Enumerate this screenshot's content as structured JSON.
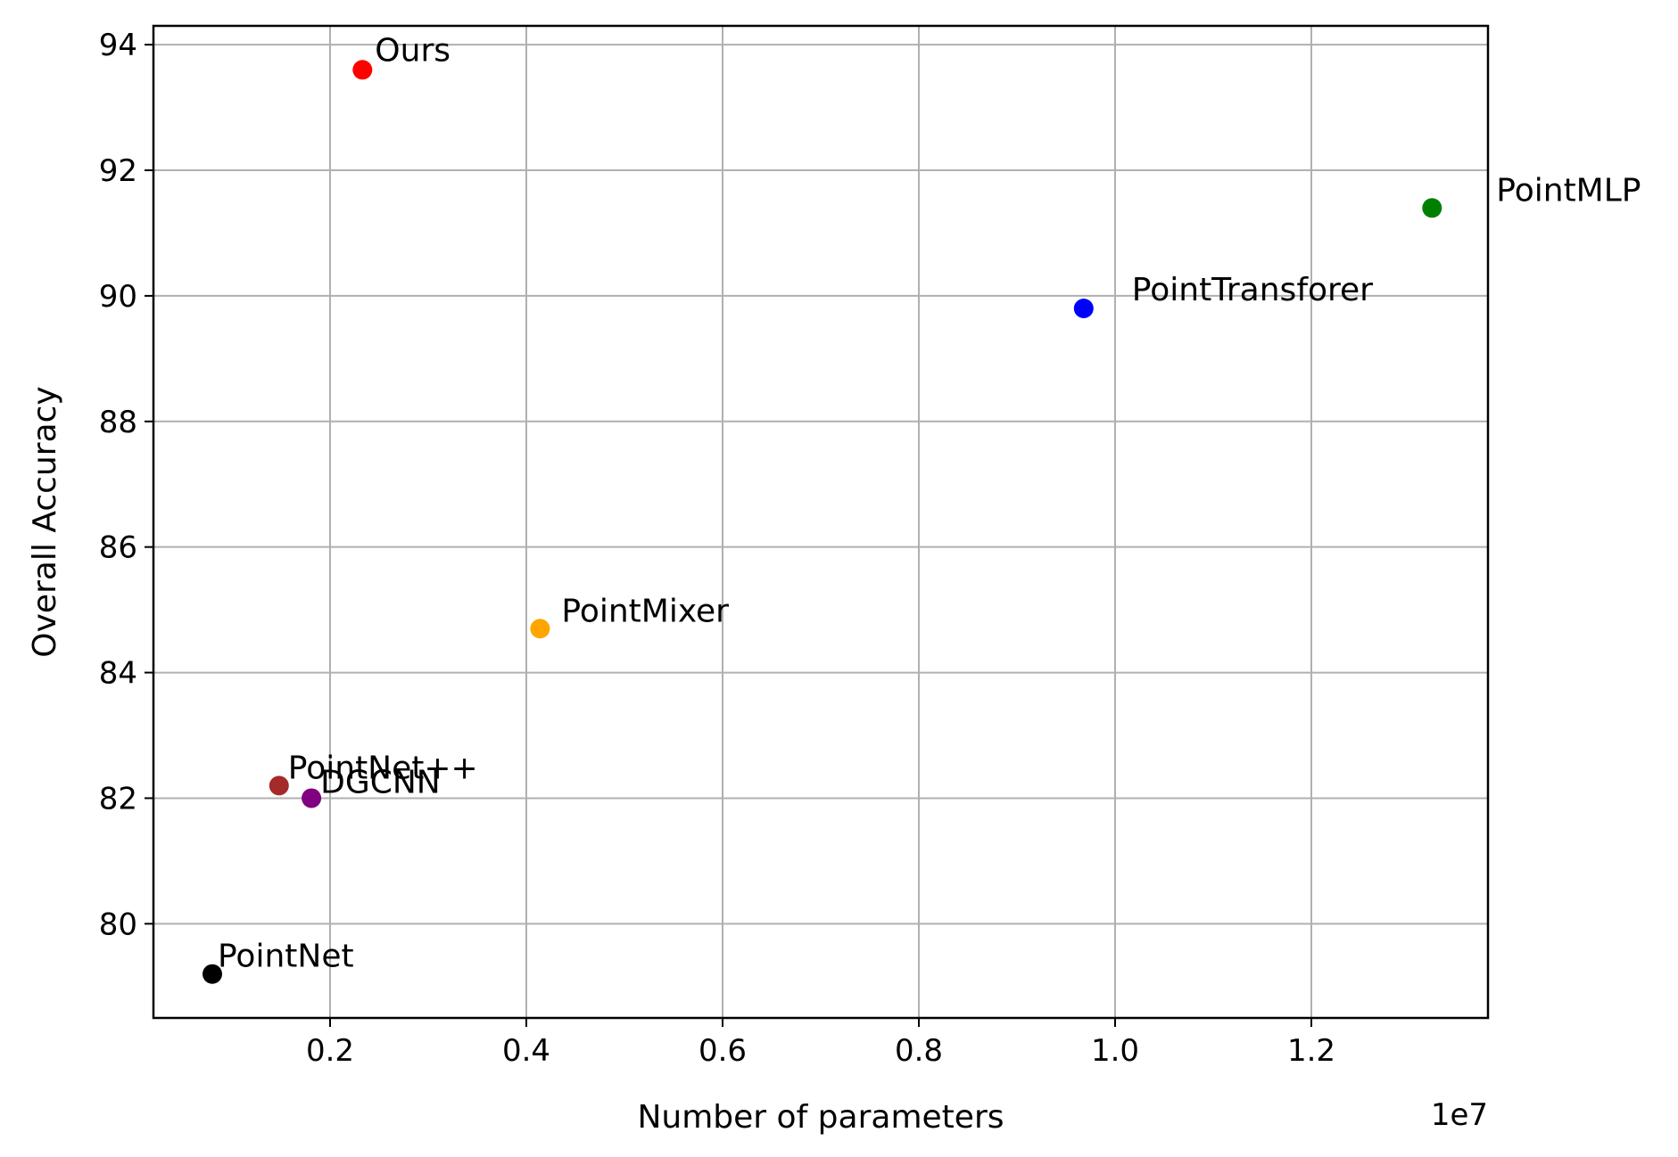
{
  "chart_data": {
    "type": "scatter",
    "title": "",
    "xlabel": "Number of parameters",
    "ylabel": "Overall Accuracy",
    "x_offset_label": "1e7",
    "xlim": [
      0.02,
      1.38
    ],
    "ylim": [
      78.5,
      94.3
    ],
    "xticks": [
      0.2,
      0.4,
      0.6,
      0.8,
      1.0,
      1.2
    ],
    "xtick_labels": [
      "0.2",
      "0.4",
      "0.6",
      "0.8",
      "1.0",
      "1.2"
    ],
    "yticks": [
      80,
      82,
      84,
      86,
      88,
      90,
      92,
      94
    ],
    "ytick_labels": [
      "80",
      "82",
      "84",
      "86",
      "88",
      "90",
      "92",
      "94"
    ],
    "grid": true,
    "points": [
      {
        "label": "Ours",
        "x": 0.233,
        "y": 93.6,
        "color": "#ff0000"
      },
      {
        "label": "PointMLP",
        "x": 1.323,
        "y": 91.4,
        "color": "#008000"
      },
      {
        "label": "PointTransforer",
        "x": 0.968,
        "y": 89.8,
        "color": "#0000ff"
      },
      {
        "label": "PointMixer",
        "x": 0.414,
        "y": 84.7,
        "color": "#ffa500"
      },
      {
        "label": "PointNet++",
        "x": 0.148,
        "y": 82.2,
        "color": "#a52a2a"
      },
      {
        "label": "DGCNN",
        "x": 0.181,
        "y": 82.0,
        "color": "#800080"
      },
      {
        "label": "PointNet",
        "x": 0.08,
        "y": 79.2,
        "color": "#000000"
      }
    ]
  }
}
